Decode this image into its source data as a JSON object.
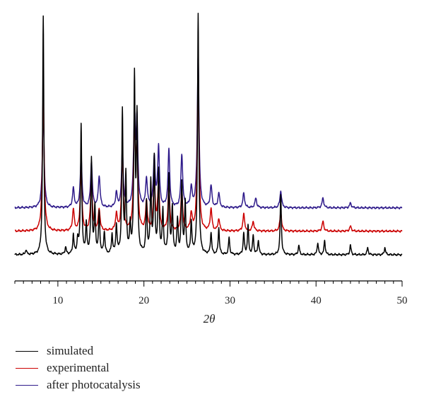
{
  "chart_data": {
    "type": "line",
    "title": "",
    "xlabel": "2θ",
    "ylabel": "",
    "xlim": [
      5,
      50
    ],
    "xticks": [
      10,
      20,
      30,
      40,
      50
    ],
    "x_tick_labels": [
      "10",
      "20",
      "30",
      "40",
      "50"
    ],
    "grid": false,
    "legend_position": "bottom-left",
    "series": [
      {
        "name": "simulated",
        "color": "#000000",
        "baseline": 0.0,
        "peaks": [
          [
            6.3,
            0.02
          ],
          [
            8.3,
            0.99
          ],
          [
            10.9,
            0.03
          ],
          [
            11.8,
            0.08
          ],
          [
            12.3,
            0.06
          ],
          [
            12.7,
            0.54
          ],
          [
            13.3,
            0.12
          ],
          [
            13.9,
            0.39
          ],
          [
            14.3,
            0.19
          ],
          [
            14.8,
            0.17
          ],
          [
            15.4,
            0.09
          ],
          [
            16.3,
            0.08
          ],
          [
            16.8,
            0.12
          ],
          [
            17.5,
            0.59
          ],
          [
            17.9,
            0.32
          ],
          [
            18.4,
            0.11
          ],
          [
            18.9,
            0.72
          ],
          [
            19.2,
            0.56
          ],
          [
            20.3,
            0.21
          ],
          [
            20.8,
            0.29
          ],
          [
            21.2,
            0.39
          ],
          [
            21.7,
            0.34
          ],
          [
            22.2,
            0.18
          ],
          [
            22.9,
            0.32
          ],
          [
            23.3,
            0.19
          ],
          [
            23.9,
            0.14
          ],
          [
            24.4,
            0.29
          ],
          [
            24.8,
            0.21
          ],
          [
            25.5,
            0.13
          ],
          [
            26.3,
            1.0
          ],
          [
            27.8,
            0.09
          ],
          [
            28.7,
            0.11
          ],
          [
            29.9,
            0.07
          ],
          [
            31.6,
            0.09
          ],
          [
            32.1,
            0.12
          ],
          [
            32.7,
            0.08
          ],
          [
            33.3,
            0.06
          ],
          [
            35.9,
            0.25
          ],
          [
            38.0,
            0.04
          ],
          [
            40.2,
            0.05
          ],
          [
            41.0,
            0.06
          ],
          [
            44.0,
            0.04
          ],
          [
            46.0,
            0.03
          ],
          [
            48.0,
            0.03
          ]
        ]
      },
      {
        "name": "experimental",
        "color": "#cc0000",
        "baseline": 0.098,
        "peaks": [
          [
            8.3,
            0.58
          ],
          [
            11.8,
            0.09
          ],
          [
            12.7,
            0.25
          ],
          [
            13.9,
            0.23
          ],
          [
            14.8,
            0.09
          ],
          [
            16.8,
            0.07
          ],
          [
            17.5,
            0.32
          ],
          [
            18.9,
            0.44
          ],
          [
            19.2,
            0.33
          ],
          [
            20.3,
            0.12
          ],
          [
            21.2,
            0.22
          ],
          [
            21.7,
            0.2
          ],
          [
            22.9,
            0.19
          ],
          [
            24.4,
            0.17
          ],
          [
            25.5,
            0.07
          ],
          [
            26.3,
            0.65
          ],
          [
            27.8,
            0.09
          ],
          [
            28.7,
            0.05
          ],
          [
            31.6,
            0.07
          ],
          [
            32.7,
            0.04
          ],
          [
            35.9,
            0.08
          ],
          [
            40.8,
            0.04
          ],
          [
            44.0,
            0.02
          ]
        ]
      },
      {
        "name": "after photocatalysis",
        "color": "#2e1a8a",
        "baseline": 0.195,
        "peaks": [
          [
            8.3,
            0.41
          ],
          [
            11.8,
            0.08
          ],
          [
            12.7,
            0.21
          ],
          [
            13.9,
            0.19
          ],
          [
            14.8,
            0.13
          ],
          [
            16.8,
            0.06
          ],
          [
            17.5,
            0.24
          ],
          [
            18.9,
            0.38
          ],
          [
            19.2,
            0.34
          ],
          [
            20.3,
            0.12
          ],
          [
            21.2,
            0.21
          ],
          [
            21.7,
            0.25
          ],
          [
            22.9,
            0.24
          ],
          [
            24.4,
            0.22
          ],
          [
            25.5,
            0.08
          ],
          [
            26.3,
            0.64
          ],
          [
            27.8,
            0.09
          ],
          [
            28.7,
            0.06
          ],
          [
            31.6,
            0.06
          ],
          [
            33.0,
            0.04
          ],
          [
            35.9,
            0.07
          ],
          [
            40.8,
            0.04
          ],
          [
            44.0,
            0.02
          ]
        ]
      }
    ]
  }
}
